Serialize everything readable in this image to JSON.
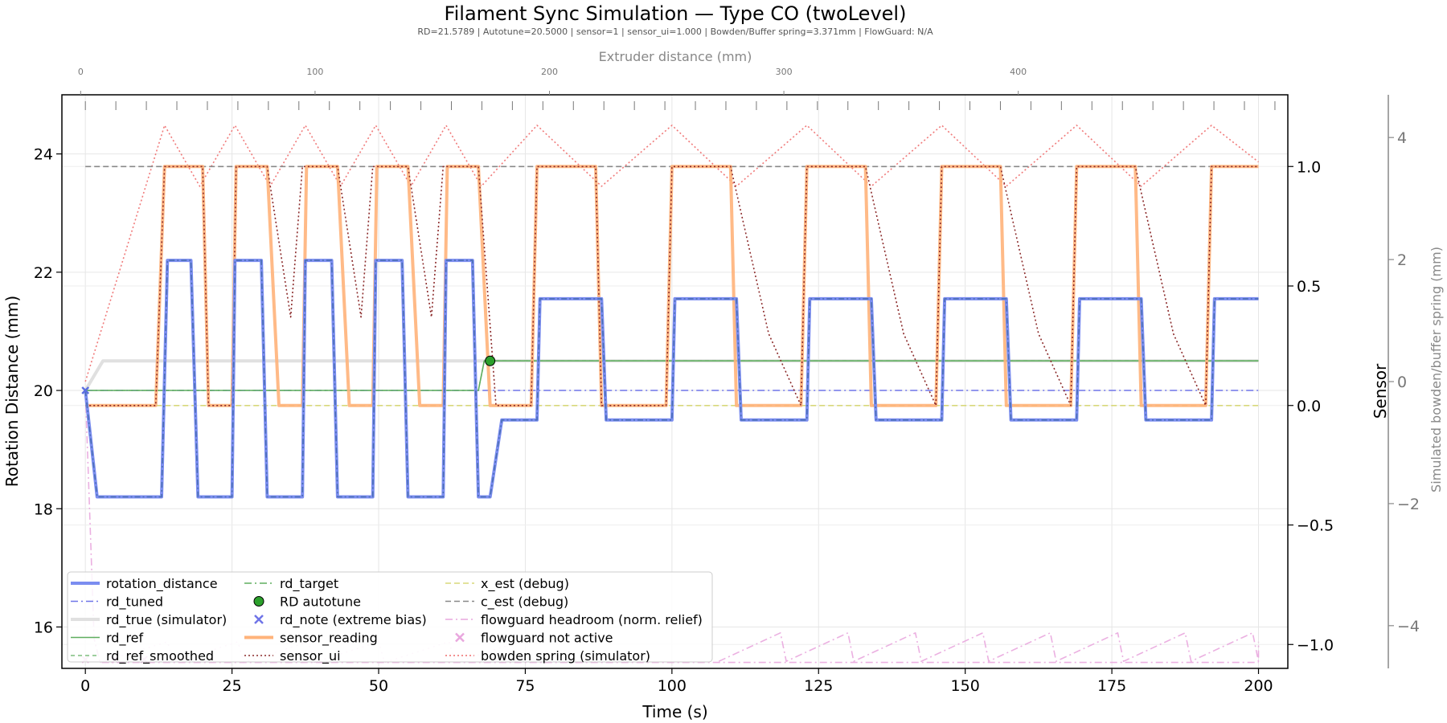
{
  "chart_data": {
    "type": "line",
    "title": "Filament Sync Simulation — Type CO (twoLevel)",
    "subtitle": "RD=21.5789 | Autotune=20.5000 | sensor=1 | sensor_ui=1.000 | Bowden/Buffer spring=3.371mm | FlowGuard: N/A",
    "xlabel": "Time (s)",
    "ylabel": "Rotation Distance (mm)",
    "ylabel_right": "Sensor",
    "ylabel_spring": "Simulated bowden/buffer spring (mm)",
    "xlabel_top": "Extruder distance (mm)",
    "xlim": [
      -4,
      205
    ],
    "ylim": [
      15.3,
      25.0
    ],
    "sensor_lim": [
      -1.1,
      1.3
    ],
    "spring_lim": [
      -4.7,
      4.7
    ],
    "top_lim": [
      -8,
      515
    ],
    "x_ticks": [
      "0",
      "25",
      "50",
      "75",
      "100",
      "125",
      "150",
      "175",
      "200"
    ],
    "y_ticks": [
      "16",
      "18",
      "20",
      "22",
      "24"
    ],
    "sensor_ticks": [
      "−1.0",
      "−0.5",
      "0.0",
      "0.5",
      "1.0"
    ],
    "spring_ticks": [
      "−4",
      "−2",
      "0",
      "2",
      "4"
    ],
    "top_ticks": [
      "0",
      "100",
      "200",
      "300",
      "400"
    ],
    "legend": [
      [
        "rotation_distance",
        "rd_tuned",
        "rd_true (simulator)",
        "rd_ref",
        "rd_ref_smoothed"
      ],
      [
        "rd_target",
        "RD autotune",
        "rd_note (extreme bias)",
        "sensor_reading",
        "sensor_ui"
      ],
      [
        "x_est (debug)",
        "c_est (debug)",
        "flowguard headroom (norm. relief)",
        "flowguard not active",
        "bowden spring (simulator)"
      ]
    ],
    "colors": {
      "rotation_distance": "#7b8df0",
      "rd_overlay": "#4a6fb5",
      "rd_tuned": "#6f74e8",
      "rd_true": "#e0e0e0",
      "rd_ref": "#5fae5f",
      "rd_target": "#5fae5f",
      "sensor_reading": "#ffb37a",
      "sensor_ui": "#8b2a2a",
      "x_est": "#d8d87a",
      "c_est": "#888888",
      "flowguard": "#e9a7de",
      "bowden_spring": "#ee6b6b",
      "autotune_marker": "#2ca02c"
    },
    "series": {
      "rotation_distance": [
        [
          0,
          20
        ],
        [
          2,
          18.2
        ],
        [
          13,
          18.2
        ],
        [
          14,
          22.2
        ],
        [
          18,
          22.2
        ],
        [
          19.2,
          18.2
        ],
        [
          21.5,
          18.2
        ],
        [
          25,
          18.2
        ],
        [
          25.5,
          22.2
        ],
        [
          30,
          22.2
        ],
        [
          31,
          18.2
        ],
        [
          33,
          18.2
        ],
        [
          37,
          18.2
        ],
        [
          37.5,
          22.2
        ],
        [
          42,
          22.2
        ],
        [
          43,
          18.2
        ],
        [
          45,
          18.2
        ],
        [
          49,
          18.2
        ],
        [
          49.5,
          22.2
        ],
        [
          54,
          22.2
        ],
        [
          55,
          18.2
        ],
        [
          57,
          18.2
        ],
        [
          61,
          18.2
        ],
        [
          61.5,
          22.2
        ],
        [
          66,
          22.2
        ],
        [
          67,
          18.2
        ],
        [
          69,
          18.2
        ],
        [
          71,
          19.5
        ],
        [
          77,
          19.5
        ],
        [
          77.5,
          21.55
        ],
        [
          88,
          21.55
        ],
        [
          88.8,
          19.5
        ],
        [
          100,
          19.5
        ],
        [
          100.5,
          21.55
        ],
        [
          111,
          21.55
        ],
        [
          111.8,
          19.5
        ],
        [
          123,
          19.5
        ],
        [
          123.5,
          21.55
        ],
        [
          134,
          21.55
        ],
        [
          134.8,
          19.5
        ],
        [
          146,
          19.5
        ],
        [
          146.5,
          21.55
        ],
        [
          157,
          21.55
        ],
        [
          157.8,
          19.5
        ],
        [
          169,
          19.5
        ],
        [
          169.5,
          21.55
        ],
        [
          180,
          21.55
        ],
        [
          180.8,
          19.5
        ],
        [
          192,
          19.5
        ],
        [
          192.5,
          21.55
        ],
        [
          200,
          21.55
        ]
      ],
      "rd_tuned": [
        [
          0,
          20
        ],
        [
          200,
          20
        ]
      ],
      "rd_true": [
        [
          0,
          20
        ],
        [
          3,
          20.5
        ],
        [
          69,
          20.5
        ],
        [
          200,
          20.5
        ]
      ],
      "rd_ref": [
        [
          0,
          20
        ],
        [
          67,
          20
        ],
        [
          68,
          20.5
        ],
        [
          200,
          20.5
        ]
      ],
      "sensor_reading": [
        [
          0,
          0
        ],
        [
          12,
          0
        ],
        [
          13.5,
          1
        ],
        [
          20,
          1
        ],
        [
          21,
          0
        ],
        [
          25,
          0
        ],
        [
          25.7,
          1
        ],
        [
          31,
          1
        ],
        [
          33,
          0
        ],
        [
          37,
          0
        ],
        [
          37.7,
          1
        ],
        [
          43,
          1
        ],
        [
          45,
          0
        ],
        [
          49,
          0
        ],
        [
          49.7,
          1
        ],
        [
          55,
          1
        ],
        [
          57,
          0
        ],
        [
          61,
          0
        ],
        [
          61.7,
          1
        ],
        [
          67,
          1
        ],
        [
          69,
          0
        ],
        [
          76,
          0
        ],
        [
          77,
          1
        ],
        [
          87,
          1
        ],
        [
          88,
          0
        ],
        [
          99,
          0
        ],
        [
          100,
          1
        ],
        [
          110,
          1
        ],
        [
          111,
          0
        ],
        [
          122,
          0
        ],
        [
          123,
          1
        ],
        [
          133,
          1
        ],
        [
          134,
          0
        ],
        [
          145,
          0
        ],
        [
          146,
          1
        ],
        [
          156,
          1
        ],
        [
          157,
          0
        ],
        [
          168,
          0
        ],
        [
          169,
          1
        ],
        [
          179,
          1
        ],
        [
          180,
          0
        ],
        [
          191,
          0
        ],
        [
          192,
          1
        ],
        [
          200,
          1
        ]
      ],
      "sensor_ui": [
        [
          0,
          0
        ],
        [
          12,
          0
        ],
        [
          13.5,
          1
        ],
        [
          20,
          1
        ],
        [
          21,
          0
        ],
        [
          25,
          0
        ],
        [
          25.7,
          1
        ],
        [
          31,
          1
        ],
        [
          35,
          0.37
        ],
        [
          37,
          1
        ],
        [
          43,
          1
        ],
        [
          47,
          0.37
        ],
        [
          49,
          1
        ],
        [
          55,
          1
        ],
        [
          59,
          0.37
        ],
        [
          61,
          1
        ],
        [
          67,
          1
        ],
        [
          70,
          0
        ],
        [
          76,
          0
        ],
        [
          77,
          1
        ],
        [
          87,
          1
        ],
        [
          88,
          0
        ],
        [
          99,
          0
        ],
        [
          100,
          1
        ],
        [
          110,
          1
        ],
        [
          116.5,
          0.3
        ],
        [
          122,
          0
        ],
        [
          123,
          1
        ],
        [
          133,
          1
        ],
        [
          139.5,
          0.3
        ],
        [
          145,
          0
        ],
        [
          146,
          1
        ],
        [
          156,
          1
        ],
        [
          162.5,
          0.3
        ],
        [
          168,
          0
        ],
        [
          169,
          1
        ],
        [
          179,
          1
        ],
        [
          185.5,
          0.3
        ],
        [
          191,
          0
        ],
        [
          192,
          1
        ],
        [
          200,
          1
        ]
      ],
      "x_est": [
        [
          0,
          0
        ],
        [
          200,
          0
        ]
      ],
      "c_est": [
        [
          0,
          1
        ],
        [
          200,
          1
        ]
      ],
      "flowguard": [
        [
          0,
          20.0
        ],
        [
          1.5,
          15.8
        ],
        [
          2.5,
          15.4
        ],
        [
          200,
          15.4
        ]
      ],
      "bowden_spring": [
        [
          0,
          0
        ],
        [
          13.5,
          4.2
        ],
        [
          19.5,
          3.2
        ],
        [
          25.5,
          4.2
        ],
        [
          31.5,
          3.2
        ],
        [
          37.5,
          4.2
        ],
        [
          43.5,
          3.2
        ],
        [
          49.5,
          4.2
        ],
        [
          55.5,
          3.2
        ],
        [
          61.5,
          4.2
        ],
        [
          67.5,
          3.2
        ],
        [
          77,
          4.2
        ],
        [
          88,
          3.2
        ],
        [
          100,
          4.2
        ],
        [
          111,
          3.2
        ],
        [
          123,
          4.2
        ],
        [
          134,
          3.2
        ],
        [
          146,
          4.2
        ],
        [
          157,
          3.2
        ],
        [
          169,
          4.2
        ],
        [
          180,
          3.2
        ],
        [
          192,
          4.2
        ],
        [
          200,
          3.6
        ]
      ]
    },
    "markers": {
      "rd_autotune": [
        69,
        20.5
      ],
      "rd_note": [
        0,
        20
      ]
    },
    "grid": true,
    "legend_loc": "lower-left"
  }
}
